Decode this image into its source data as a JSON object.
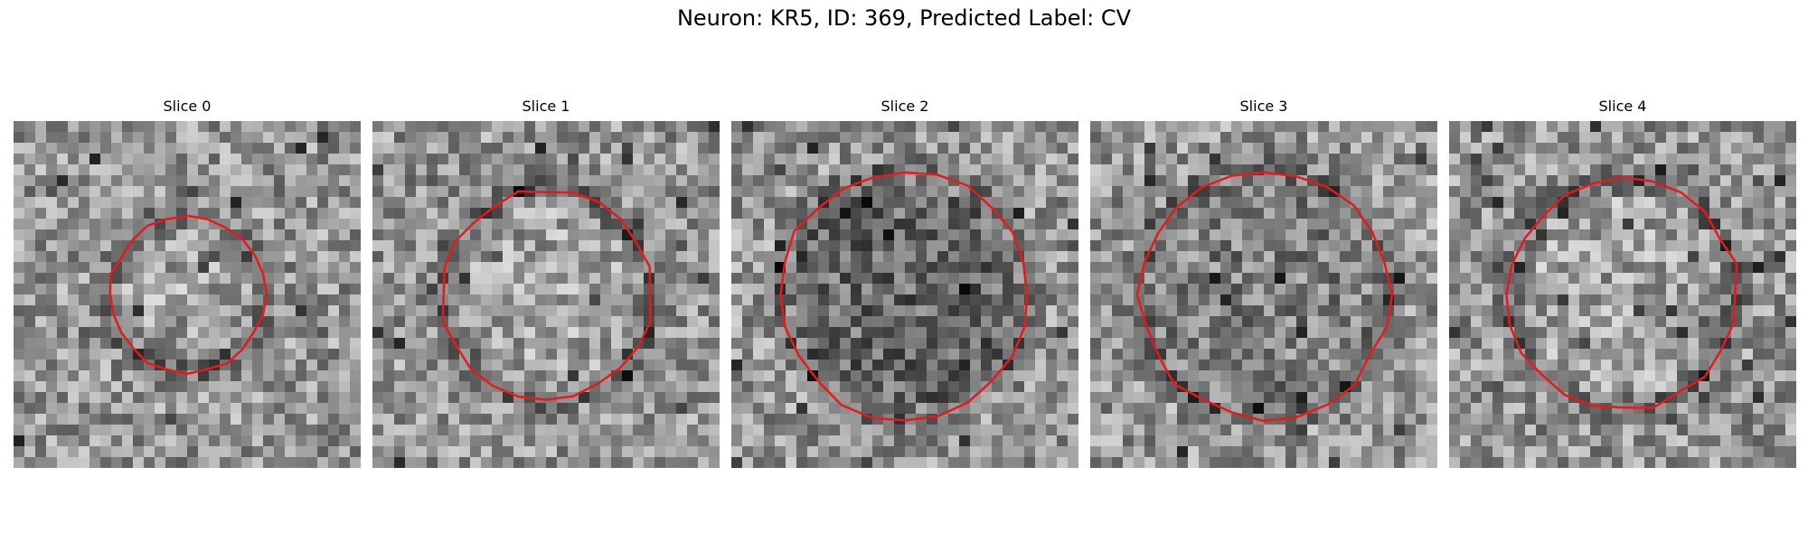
{
  "figure": {
    "title": "Neuron: KR5, ID: 369, Predicted Label: CV"
  },
  "colors": {
    "contour": "#e41a1c",
    "background": "#ffffff"
  },
  "panels": [
    {
      "title": "Slice 0",
      "seed": 11,
      "contour_scale": 0.62,
      "inner_tone": "light"
    },
    {
      "title": "Slice 1",
      "seed": 23,
      "contour_scale": 0.84,
      "inner_tone": "light"
    },
    {
      "title": "Slice 2",
      "seed": 37,
      "contour_scale": 1.0,
      "inner_tone": "dark"
    },
    {
      "title": "Slice 3",
      "seed": 51,
      "contour_scale": 1.0,
      "inner_tone": "mid"
    },
    {
      "title": "Slice 4",
      "seed": 67,
      "contour_scale": 0.92,
      "inner_tone": "light"
    }
  ]
}
